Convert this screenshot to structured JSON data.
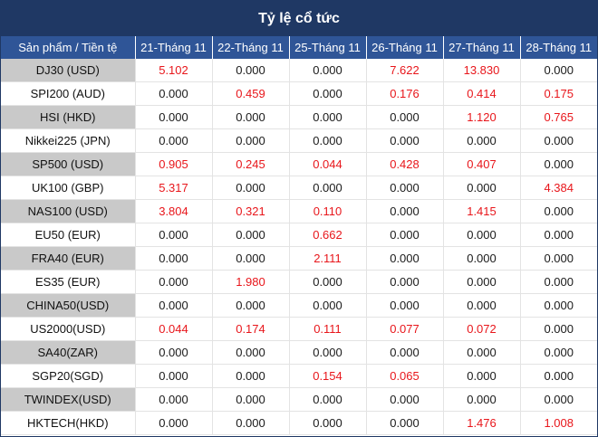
{
  "title": "Tỷ lệ cổ tức",
  "header": {
    "product": "Sản phẩm / Tiền tệ",
    "dates": [
      "21-Tháng 11",
      "22-Tháng 11",
      "25-Tháng 11",
      "26-Tháng 11",
      "27-Tháng 11",
      "28-Tháng 11"
    ]
  },
  "rows": [
    {
      "product": "DJ30 (USD)",
      "values": [
        "5.102",
        "0.000",
        "0.000",
        "7.622",
        "13.830",
        "0.000"
      ]
    },
    {
      "product": "SPI200 (AUD)",
      "values": [
        "0.000",
        "0.459",
        "0.000",
        "0.176",
        "0.414",
        "0.175"
      ]
    },
    {
      "product": "HSI (HKD)",
      "values": [
        "0.000",
        "0.000",
        "0.000",
        "0.000",
        "1.120",
        "0.765"
      ]
    },
    {
      "product": "Nikkei225 (JPN)",
      "values": [
        "0.000",
        "0.000",
        "0.000",
        "0.000",
        "0.000",
        "0.000"
      ]
    },
    {
      "product": "SP500 (USD)",
      "values": [
        "0.905",
        "0.245",
        "0.044",
        "0.428",
        "0.407",
        "0.000"
      ]
    },
    {
      "product": "UK100 (GBP)",
      "values": [
        "5.317",
        "0.000",
        "0.000",
        "0.000",
        "0.000",
        "4.384"
      ]
    },
    {
      "product": "NAS100 (USD)",
      "values": [
        "3.804",
        "0.321",
        "0.110",
        "0.000",
        "1.415",
        "0.000"
      ]
    },
    {
      "product": "EU50 (EUR)",
      "values": [
        "0.000",
        "0.000",
        "0.662",
        "0.000",
        "0.000",
        "0.000"
      ]
    },
    {
      "product": "FRA40 (EUR)",
      "values": [
        "0.000",
        "0.000",
        "2.111",
        "0.000",
        "0.000",
        "0.000"
      ]
    },
    {
      "product": "ES35 (EUR)",
      "values": [
        "0.000",
        "1.980",
        "0.000",
        "0.000",
        "0.000",
        "0.000"
      ]
    },
    {
      "product": "CHINA50(USD)",
      "values": [
        "0.000",
        "0.000",
        "0.000",
        "0.000",
        "0.000",
        "0.000"
      ]
    },
    {
      "product": "US2000(USD)",
      "values": [
        "0.044",
        "0.174",
        "0.111",
        "0.077",
        "0.072",
        "0.000"
      ]
    },
    {
      "product": "SA40(ZAR)",
      "values": [
        "0.000",
        "0.000",
        "0.000",
        "0.000",
        "0.000",
        "0.000"
      ]
    },
    {
      "product": "SGP20(SGD)",
      "values": [
        "0.000",
        "0.000",
        "0.154",
        "0.065",
        "0.000",
        "0.000"
      ]
    },
    {
      "product": "TWINDEX(USD)",
      "values": [
        "0.000",
        "0.000",
        "0.000",
        "0.000",
        "0.000",
        "0.000"
      ]
    },
    {
      "product": "HKTECH(HKD)",
      "values": [
        "0.000",
        "0.000",
        "0.000",
        "0.000",
        "1.476",
        "1.008"
      ]
    }
  ],
  "colors": {
    "title_bg": "#1f3864",
    "header_bg": "#2f5597",
    "band_gray": "#c9c9c9",
    "nonzero_text": "#e8161b",
    "zero_text": "#1a1a1a"
  }
}
